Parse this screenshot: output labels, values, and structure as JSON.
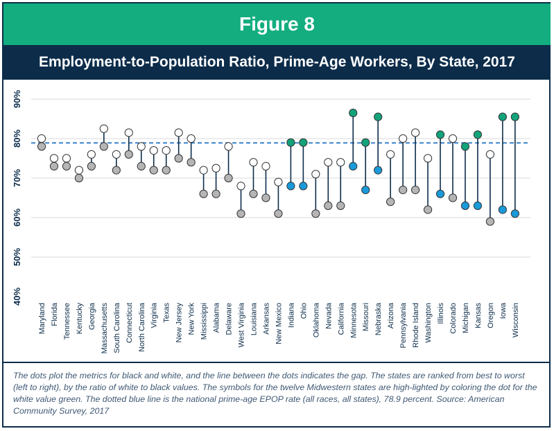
{
  "figure_label": "Figure 8",
  "title": "Employment-to-Population Ratio, Prime-Age Workers, By State, 2017",
  "caption": "The dots plot the metrics for black and white, and the line between the dots indicates the gap. The states are ranked from best to worst (left to right), by the ratio of white to black values. The symbols for the twelve Midwestern states are high-lighted by coloring the dot for the white value green. The dotted blue line is the national prime-age EPOP rate (all races, all states), 78.9 percent. Source: American Community Survey, 2017",
  "colors": {
    "header_green": "#13ad80",
    "title_navy": "#0c2c4a",
    "white_dot_midwest": "#13a37a",
    "black_dot_midwest": "#1a9ad9",
    "dot_gray": "#b5b5b5",
    "dot_white": "#ffffff",
    "gap_line": "#0c2c4a",
    "national_line": "#4d8fcf"
  },
  "chart_data": {
    "type": "dumbbell",
    "ylim": [
      40,
      90
    ],
    "y_ticks": [
      "40%",
      "50%",
      "60%",
      "70%",
      "80%",
      "90%"
    ],
    "reference_line": {
      "value": 78.9
    },
    "grid": true,
    "categories": [
      "Maryland",
      "Florida",
      "Tennessee",
      "Kentucky",
      "Georgia",
      "Massachusetts",
      "South Carolina",
      "Connecticut",
      "North Carolina",
      "Virginia",
      "Texas",
      "New Jersey",
      "New York",
      "Mississippi",
      "Alabama",
      "Delaware",
      "West Virginia",
      "Louisiana",
      "Arkansas",
      "New Mexico",
      "Indiana",
      "Ohio",
      "Oklahoma",
      "Nevada",
      "California",
      "Minnesota",
      "Missouri",
      "Nebraska",
      "Arizona",
      "Pennsylvania",
      "Rhode Island",
      "Washington",
      "Illinois",
      "Colorado",
      "Michigan",
      "Kansas",
      "Oregon",
      "Iowa",
      "Wisconsin"
    ],
    "series": [
      {
        "values": [
          80,
          75,
          75,
          72,
          76,
          82.5,
          76,
          81.5,
          78,
          77,
          77,
          81.5,
          80,
          72,
          72.5,
          78,
          68,
          74,
          73,
          69,
          79,
          79,
          71,
          74,
          74,
          86.5,
          79,
          85.5,
          76,
          80,
          81.5,
          75,
          81,
          80,
          78,
          81,
          76,
          85.5,
          85.5
        ]
      },
      {
        "values": [
          78,
          73,
          73,
          70,
          73,
          78,
          72,
          76,
          73,
          72,
          72,
          75,
          74,
          66,
          66,
          70,
          61,
          66,
          65,
          61,
          68,
          68,
          61,
          63,
          63,
          73,
          67,
          72,
          64,
          67,
          67,
          62,
          66,
          65,
          63,
          63,
          59,
          62,
          61
        ]
      }
    ],
    "midwest": [
      false,
      false,
      false,
      false,
      false,
      false,
      false,
      false,
      false,
      false,
      false,
      false,
      false,
      false,
      false,
      false,
      false,
      false,
      false,
      false,
      true,
      true,
      false,
      false,
      false,
      true,
      true,
      true,
      false,
      false,
      false,
      false,
      true,
      false,
      true,
      true,
      false,
      true,
      true
    ]
  }
}
